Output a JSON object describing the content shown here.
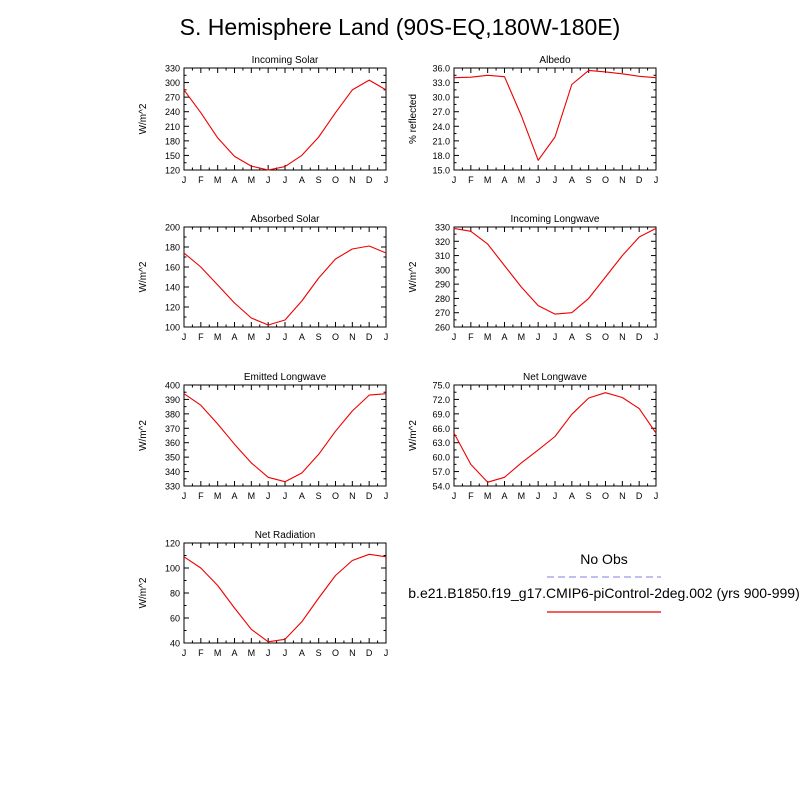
{
  "main_title": "S. Hemisphere Land (90S-EQ,180W-180E)",
  "colors": {
    "model": "#ee0000",
    "obs": "#9999ee",
    "axis": "#000000"
  },
  "legend": {
    "obs_label": "No Obs",
    "model_label": "b.e21.B1850.f19_g17.CMIP6-piControl-2deg.002 (yrs 900-999)"
  },
  "chart_data": [
    {
      "type": "line",
      "title": "Incoming Solar",
      "ylabel": "W/m^2",
      "xlabel": "",
      "categories": [
        "J",
        "F",
        "M",
        "A",
        "M",
        "J",
        "J",
        "A",
        "S",
        "O",
        "N",
        "D",
        "J"
      ],
      "ylim": [
        120,
        330
      ],
      "yticks": [
        120,
        150,
        180,
        210,
        240,
        270,
        300,
        330
      ],
      "ytick_labels": [
        "120",
        "150",
        "180",
        "210",
        "240",
        "270",
        "300",
        "330"
      ],
      "series": [
        {
          "name": "b.e21.B1850.f19_g17.CMIP6-piControl-2deg.002 (yrs 900-999)",
          "values": [
            285,
            238,
            186,
            148,
            128,
            120,
            127,
            150,
            188,
            238,
            285,
            305,
            285
          ]
        }
      ]
    },
    {
      "type": "line",
      "title": "Albedo",
      "ylabel": "% reflected",
      "xlabel": "",
      "categories": [
        "J",
        "F",
        "M",
        "A",
        "M",
        "J",
        "J",
        "A",
        "S",
        "O",
        "N",
        "D",
        "J"
      ],
      "ylim": [
        15,
        36
      ],
      "yticks": [
        15,
        18,
        21,
        24,
        27,
        30,
        33,
        36
      ],
      "ytick_labels": [
        "15.0",
        "18.0",
        "21.0",
        "24.0",
        "27.0",
        "30.0",
        "33.0",
        "36.0"
      ],
      "series": [
        {
          "name": "b.e21.B1850.f19_g17.CMIP6-piControl-2deg.002 (yrs 900-999)",
          "values": [
            34.0,
            34.1,
            34.5,
            34.2,
            26.2,
            17.0,
            21.8,
            32.6,
            35.5,
            35.2,
            34.8,
            34.3,
            34.0
          ]
        }
      ]
    },
    {
      "type": "line",
      "title": "Absorbed Solar",
      "ylabel": "W/m^2",
      "xlabel": "",
      "categories": [
        "J",
        "F",
        "M",
        "A",
        "M",
        "J",
        "J",
        "A",
        "S",
        "O",
        "N",
        "D",
        "J"
      ],
      "ylim": [
        100,
        200
      ],
      "yticks": [
        100,
        120,
        140,
        160,
        180,
        200
      ],
      "ytick_labels": [
        "100",
        "120",
        "140",
        "160",
        "180",
        "200"
      ],
      "series": [
        {
          "name": "b.e21.B1850.f19_g17.CMIP6-piControl-2deg.002 (yrs 900-999)",
          "values": [
            174,
            160,
            142,
            124,
            109,
            102,
            107,
            126,
            149,
            168,
            178,
            181,
            174
          ]
        }
      ]
    },
    {
      "type": "line",
      "title": "Incoming Longwave",
      "ylabel": "W/m^2",
      "xlabel": "",
      "categories": [
        "J",
        "F",
        "M",
        "A",
        "M",
        "J",
        "J",
        "A",
        "S",
        "O",
        "N",
        "D",
        "J"
      ],
      "ylim": [
        260,
        330
      ],
      "yticks": [
        260,
        270,
        280,
        290,
        300,
        310,
        320,
        330
      ],
      "ytick_labels": [
        "260",
        "270",
        "280",
        "290",
        "300",
        "310",
        "320",
        "330"
      ],
      "series": [
        {
          "name": "b.e21.B1850.f19_g17.CMIP6-piControl-2deg.002 (yrs 900-999)",
          "values": [
            329,
            327,
            318,
            303,
            288,
            275,
            269,
            270,
            280,
            295,
            310,
            323,
            329
          ]
        }
      ]
    },
    {
      "type": "line",
      "title": "Emitted Longwave",
      "ylabel": "W/m^2",
      "xlabel": "",
      "categories": [
        "J",
        "F",
        "M",
        "A",
        "M",
        "J",
        "J",
        "A",
        "S",
        "O",
        "N",
        "D",
        "J"
      ],
      "ylim": [
        330,
        400
      ],
      "yticks": [
        330,
        340,
        350,
        360,
        370,
        380,
        390,
        400
      ],
      "ytick_labels": [
        "330",
        "340",
        "350",
        "360",
        "370",
        "380",
        "390",
        "400"
      ],
      "series": [
        {
          "name": "b.e21.B1850.f19_g17.CMIP6-piControl-2deg.002 (yrs 900-999)",
          "values": [
            394,
            386,
            373,
            359,
            346,
            336,
            333,
            339,
            352,
            368,
            382,
            393,
            394
          ]
        }
      ]
    },
    {
      "type": "line",
      "title": "Net Longwave",
      "ylabel": "W/m^2",
      "xlabel": "",
      "categories": [
        "J",
        "F",
        "M",
        "A",
        "M",
        "J",
        "J",
        "A",
        "S",
        "O",
        "N",
        "D",
        "J"
      ],
      "ylim": [
        54,
        75
      ],
      "yticks": [
        54,
        57,
        60,
        63,
        66,
        69,
        72,
        75
      ],
      "ytick_labels": [
        "54.0",
        "57.0",
        "60.0",
        "63.0",
        "66.0",
        "69.0",
        "72.0",
        "75.0"
      ],
      "series": [
        {
          "name": "b.e21.B1850.f19_g17.CMIP6-piControl-2deg.002 (yrs 900-999)",
          "values": [
            65.0,
            58.5,
            54.8,
            55.8,
            58.8,
            61.5,
            64.3,
            68.9,
            72.3,
            73.4,
            72.4,
            70.1,
            65.0
          ]
        }
      ]
    },
    {
      "type": "line",
      "title": "Net Radiation",
      "ylabel": "W/m^2",
      "xlabel": "",
      "categories": [
        "J",
        "F",
        "M",
        "A",
        "M",
        "J",
        "J",
        "A",
        "S",
        "O",
        "N",
        "D",
        "J"
      ],
      "ylim": [
        40,
        120
      ],
      "yticks": [
        40,
        60,
        80,
        100,
        120
      ],
      "ytick_labels": [
        "40",
        "60",
        "80",
        "100",
        "120"
      ],
      "series": [
        {
          "name": "b.e21.B1850.f19_g17.CMIP6-piControl-2deg.002 (yrs 900-999)",
          "values": [
            109,
            100,
            86,
            68,
            51,
            41,
            43,
            57,
            76,
            94,
            106,
            111,
            109
          ]
        }
      ]
    }
  ]
}
